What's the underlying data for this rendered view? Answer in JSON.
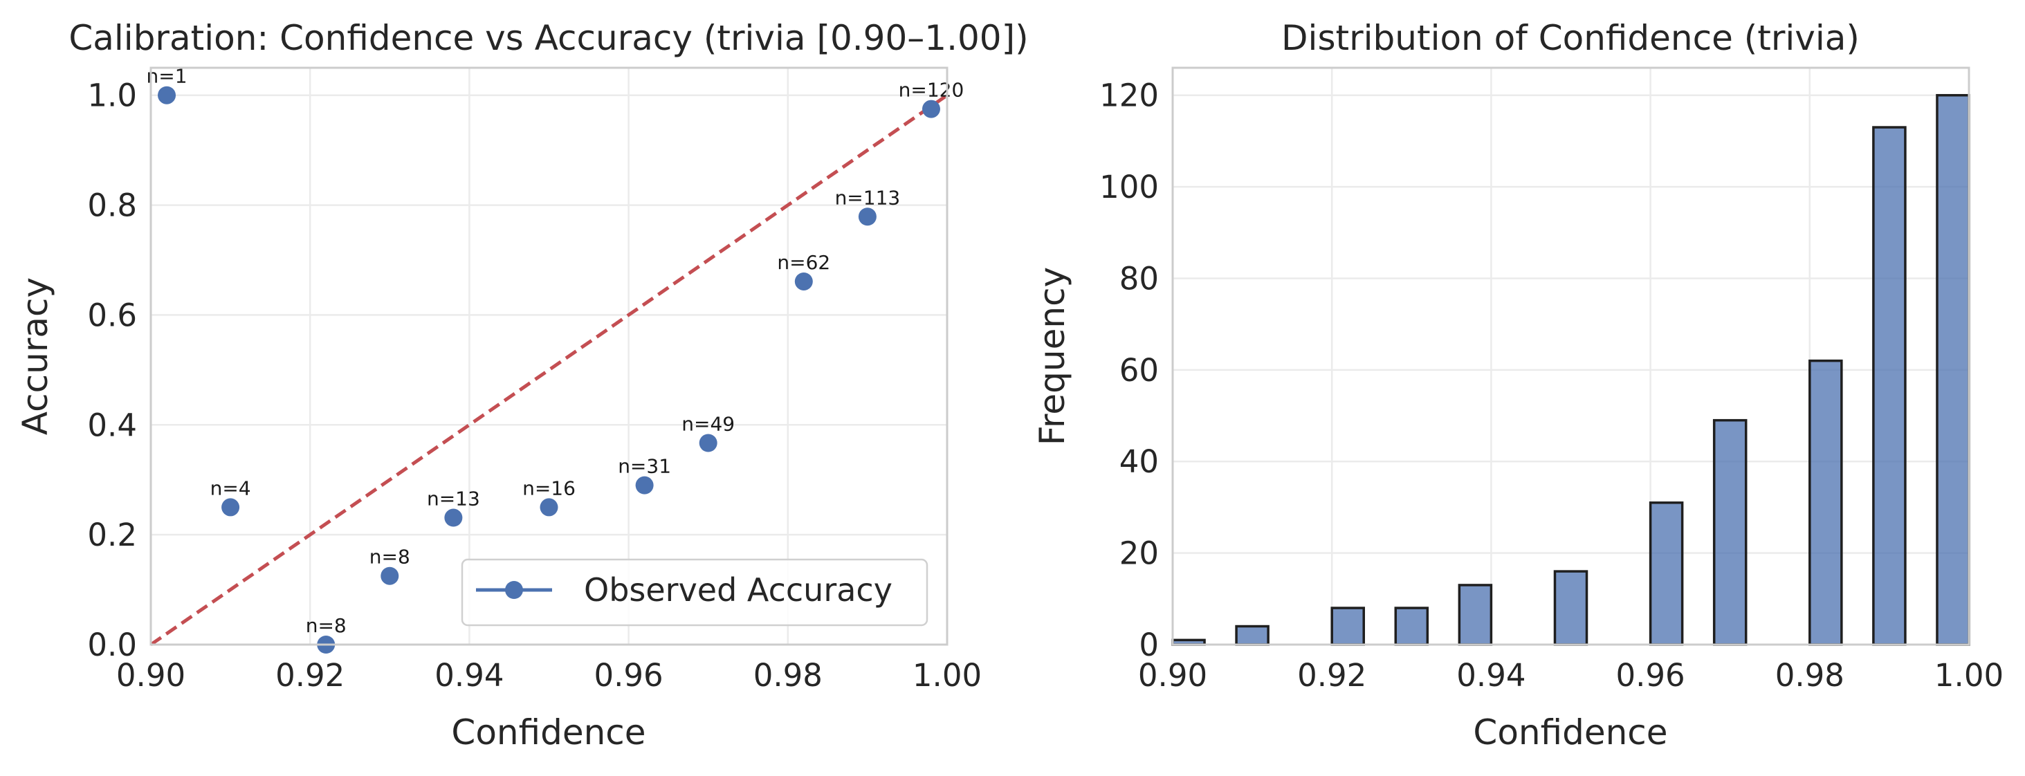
{
  "chart_data": [
    {
      "type": "scatter",
      "title": "Calibration: Confidence vs Accuracy (trivia [0.90–1.00])",
      "xlabel": "Confidence",
      "ylabel": "Accuracy",
      "xlim": [
        0.9,
        1.0
      ],
      "ylim": [
        0.0,
        1.05
      ],
      "xticks": [
        "0.90",
        "0.92",
        "0.94",
        "0.96",
        "0.98",
        "1.00"
      ],
      "yticks": [
        "0.0",
        "0.2",
        "0.4",
        "0.6",
        "0.8",
        "1.0"
      ],
      "grid": true,
      "legend": {
        "placement": "lower-right",
        "entries": [
          "Observed Accuracy"
        ]
      },
      "series": [
        {
          "name": "Observed Accuracy",
          "color": "#4c72b0",
          "points": [
            {
              "x": 0.902,
              "y": 1.0,
              "label": "n=1"
            },
            {
              "x": 0.91,
              "y": 0.25,
              "label": "n=4"
            },
            {
              "x": 0.922,
              "y": 0.0,
              "label": "n=8"
            },
            {
              "x": 0.93,
              "y": 0.125,
              "label": "n=8"
            },
            {
              "x": 0.938,
              "y": 0.231,
              "label": "n=13"
            },
            {
              "x": 0.95,
              "y": 0.25,
              "label": "n=16"
            },
            {
              "x": 0.962,
              "y": 0.29,
              "label": "n=31"
            },
            {
              "x": 0.97,
              "y": 0.367,
              "label": "n=49"
            },
            {
              "x": 0.982,
              "y": 0.661,
              "label": "n=62"
            },
            {
              "x": 0.99,
              "y": 0.779,
              "label": "n=113"
            },
            {
              "x": 0.998,
              "y": 0.975,
              "label": "n=120"
            }
          ]
        }
      ],
      "reference_line": {
        "from": [
          0.9,
          0.0
        ],
        "to": [
          1.0,
          1.0
        ],
        "color": "#c44e52",
        "style": "dashed"
      }
    },
    {
      "type": "bar",
      "title": "Distribution of Confidence (trivia)",
      "xlabel": "Confidence",
      "ylabel": "Frequency",
      "xlim": [
        0.9,
        1.0
      ],
      "ylim": [
        0,
        126
      ],
      "xticks": [
        "0.90",
        "0.92",
        "0.94",
        "0.96",
        "0.98",
        "1.00"
      ],
      "yticks": [
        "0",
        "20",
        "40",
        "60",
        "80",
        "100",
        "120"
      ],
      "grid": true,
      "color": "#4c72b0",
      "bins": [
        {
          "start": 0.9,
          "end": 0.904,
          "value": 1
        },
        {
          "start": 0.908,
          "end": 0.912,
          "value": 4
        },
        {
          "start": 0.92,
          "end": 0.924,
          "value": 8
        },
        {
          "start": 0.928,
          "end": 0.932,
          "value": 8
        },
        {
          "start": 0.936,
          "end": 0.94,
          "value": 13
        },
        {
          "start": 0.948,
          "end": 0.952,
          "value": 16
        },
        {
          "start": 0.96,
          "end": 0.964,
          "value": 31
        },
        {
          "start": 0.968,
          "end": 0.972,
          "value": 49
        },
        {
          "start": 0.98,
          "end": 0.984,
          "value": 62
        },
        {
          "start": 0.988,
          "end": 0.992,
          "value": 113
        },
        {
          "start": 0.996,
          "end": 1.0,
          "value": 120
        }
      ]
    }
  ]
}
